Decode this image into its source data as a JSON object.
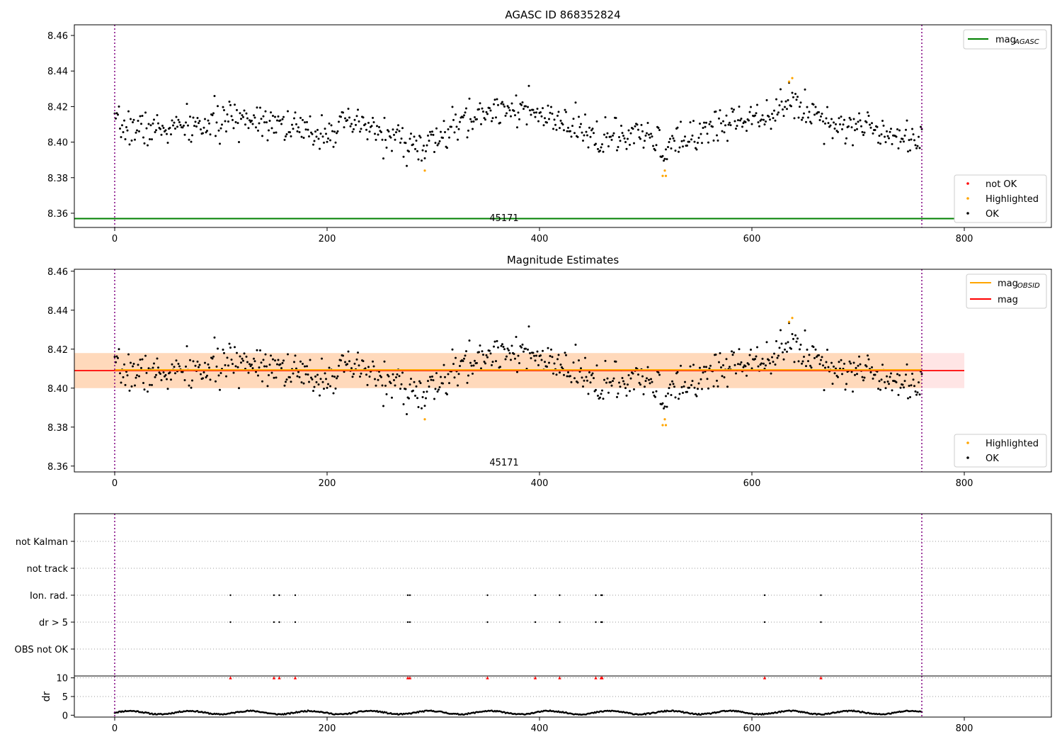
{
  "chart_data": [
    {
      "type": "scatter",
      "title": "AGASC ID 868352824",
      "xlim": [
        -38,
        882
      ],
      "ylim": [
        8.352,
        8.466
      ],
      "xticks": [
        0,
        200,
        400,
        600,
        800
      ],
      "yticks": [
        8.36,
        8.38,
        8.4,
        8.42,
        8.44,
        8.46
      ],
      "obsid_label": "45171",
      "obsid_label_x": 380,
      "vlines": [
        0,
        760
      ],
      "mag_agasc": 8.357,
      "legend_lines": [
        {
          "label": "mag",
          "sub": "AGASC",
          "color": "#008000"
        }
      ],
      "legend_points": [
        {
          "label": "not OK",
          "color": "#ff0000"
        },
        {
          "label": "Highlighted",
          "color": "#ffa500"
        },
        {
          "label": "OK",
          "color": "#000000"
        }
      ],
      "highlighted": [
        [
          292,
          8.384
        ],
        [
          516,
          8.381
        ],
        [
          518,
          8.384
        ],
        [
          519,
          8.381
        ],
        [
          635,
          8.434
        ],
        [
          638,
          8.436
        ]
      ],
      "series_shape": {
        "n": 760,
        "seed": 7,
        "base": 8.409,
        "noise": 0.0065
      },
      "trend_x": [
        0,
        40,
        80,
        120,
        150,
        180,
        230,
        260,
        290,
        330,
        370,
        420,
        460,
        500,
        520,
        560,
        600,
        640,
        680,
        720,
        760
      ],
      "trend_y": [
        8.409,
        8.407,
        8.409,
        8.414,
        8.413,
        8.405,
        8.41,
        8.403,
        8.396,
        8.412,
        8.421,
        8.41,
        8.402,
        8.403,
        8.396,
        8.408,
        8.415,
        8.422,
        8.41,
        8.408,
        8.401
      ]
    },
    {
      "type": "scatter",
      "title": "Magnitude Estimates",
      "xlim": [
        -38,
        882
      ],
      "ylim": [
        8.357,
        8.461
      ],
      "xticks": [
        0,
        200,
        400,
        600,
        800
      ],
      "yticks": [
        8.36,
        8.38,
        8.4,
        8.42,
        8.44,
        8.46
      ],
      "obsid_label": "45171",
      "vlines": [
        0,
        760
      ],
      "mag": 8.409,
      "mag_band": [
        8.4,
        8.418
      ],
      "mag_obsid": 8.409,
      "mag_obsid_band": [
        8.4,
        8.418
      ],
      "legend_lines": [
        {
          "label": "mag",
          "sub": "OBSID",
          "color": "#ffa500"
        },
        {
          "label": "mag",
          "sub": "",
          "color": "#ff0000"
        }
      ],
      "legend_points": [
        {
          "label": "Highlighted",
          "color": "#ffa500"
        },
        {
          "label": "OK",
          "color": "#000000"
        }
      ]
    },
    {
      "type": "scatter",
      "title": "",
      "categories": [
        "not Kalman",
        "not track",
        "Ion. rad.",
        "dr > 5",
        "OBS not OK"
      ],
      "flag_x": [
        109,
        150,
        155,
        170,
        276,
        278,
        351,
        396,
        419,
        453,
        458,
        459,
        612,
        665
      ],
      "flag_rows": [
        "Ion. rad.",
        "dr > 5"
      ],
      "vlines": [
        0,
        760
      ]
    },
    {
      "type": "scatter",
      "ylabel": "dr",
      "xlim": [
        -38,
        882
      ],
      "ylim": [
        -0.5,
        10.5
      ],
      "yticks": [
        0,
        5,
        10
      ],
      "xticks": [
        0,
        200,
        400,
        600,
        800
      ],
      "clip_value": 10,
      "clip_x": [
        109,
        150,
        155,
        170,
        276,
        278,
        351,
        396,
        419,
        453,
        458,
        459,
        612,
        665
      ],
      "dr_range": [
        0.1,
        1.5
      ],
      "vlines": [
        0,
        760
      ]
    }
  ]
}
